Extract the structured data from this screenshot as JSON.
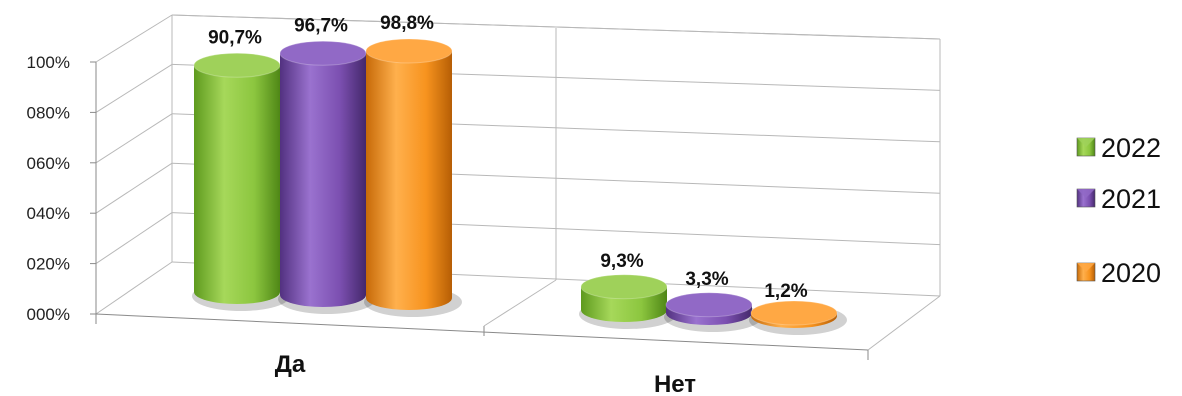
{
  "chart_data": {
    "type": "bar",
    "title": "",
    "xlabel": "",
    "ylabel": "",
    "categories": [
      "Да",
      "Нет"
    ],
    "series": [
      {
        "name": "2022",
        "values": [
          90.7,
          9.3
        ],
        "labels": [
          "90,7%",
          "9,3%"
        ],
        "color": "#8cc63f"
      },
      {
        "name": "2021",
        "values": [
          96.7,
          3.3
        ],
        "labels": [
          "96,7%",
          "3,3%"
        ],
        "color": "#7b4fb0"
      },
      {
        "name": "2020",
        "values": [
          98.8,
          1.2
        ],
        "labels": [
          "98,8%",
          "1,2%"
        ],
        "color": "#f7931e"
      }
    ],
    "yticks": [
      "000%",
      "020%",
      "040%",
      "060%",
      "080%",
      "100%"
    ],
    "ylim": [
      0,
      100
    ],
    "grid": true,
    "legend_position": "right",
    "style": "3d-cylinder"
  }
}
